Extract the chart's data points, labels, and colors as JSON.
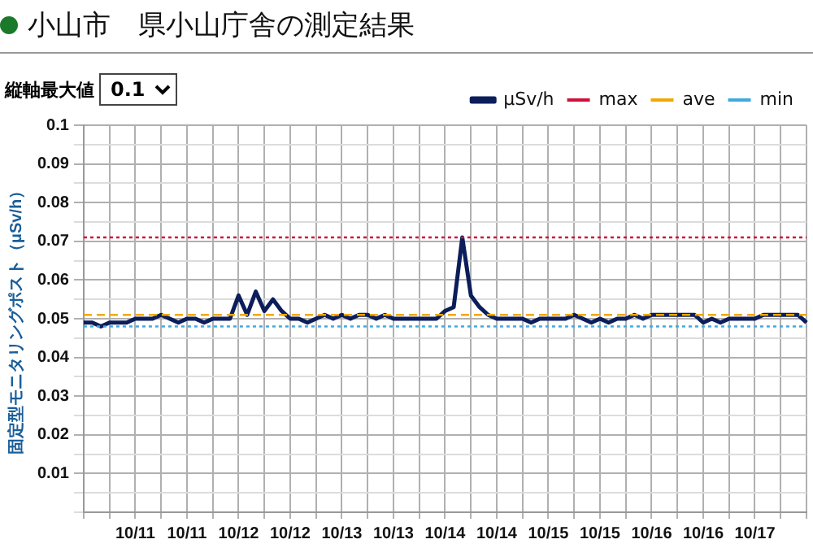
{
  "chart_data": {
    "type": "line",
    "title": "小山市　県小山庁舎の測定結果",
    "ylabel": "固定型モニタリングポスト（μSv/h）",
    "annotations": [
      "縦軸最大値",
      "0.1"
    ],
    "categories": [
      null,
      null,
      null,
      null,
      null,
      null,
      "10/11",
      null,
      null,
      null,
      null,
      null,
      "10/11",
      null,
      null,
      null,
      null,
      null,
      "10/12",
      null,
      null,
      null,
      null,
      null,
      "10/12",
      null,
      null,
      null,
      null,
      null,
      "10/13",
      null,
      null,
      null,
      null,
      null,
      "10/13",
      null,
      null,
      null,
      null,
      null,
      "10/14",
      null,
      null,
      null,
      null,
      null,
      "10/14",
      null,
      null,
      null,
      null,
      null,
      "10/15",
      null,
      null,
      null,
      null,
      null,
      "10/15",
      null,
      null,
      null,
      null,
      null,
      "10/16",
      null,
      null,
      null,
      null,
      null,
      "10/16",
      null,
      null,
      null,
      null,
      null,
      "10/17",
      null,
      null,
      null,
      null,
      null,
      null
    ],
    "series": [
      {
        "name": "μSv/h",
        "color": "#0b1d5a",
        "values": [
          0.049,
          0.049,
          0.048,
          0.049,
          0.049,
          0.049,
          0.05,
          0.05,
          0.05,
          0.051,
          0.05,
          0.049,
          0.05,
          0.05,
          0.049,
          0.05,
          0.05,
          0.05,
          0.056,
          0.051,
          0.057,
          0.052,
          0.055,
          0.052,
          0.05,
          0.05,
          0.049,
          0.05,
          0.051,
          0.05,
          0.051,
          0.05,
          0.051,
          0.051,
          0.05,
          0.051,
          0.05,
          0.05,
          0.05,
          0.05,
          0.05,
          0.05,
          0.052,
          0.053,
          0.071,
          0.056,
          0.053,
          0.051,
          0.05,
          0.05,
          0.05,
          0.05,
          0.049,
          0.05,
          0.05,
          0.05,
          0.05,
          0.051,
          0.05,
          0.049,
          0.05,
          0.049,
          0.05,
          0.05,
          0.051,
          0.05,
          0.051,
          0.051,
          0.051,
          0.051,
          0.051,
          0.051,
          0.049,
          0.05,
          0.049,
          0.05,
          0.05,
          0.05,
          0.05,
          0.051,
          0.051,
          0.051,
          0.051,
          0.051,
          0.049
        ]
      }
    ],
    "ref_lines": [
      {
        "axis": "y",
        "value": 0.071,
        "label": "max",
        "color": "#d0103a",
        "line_style": "dotted"
      },
      {
        "axis": "y",
        "value": 0.051,
        "label": "ave",
        "color": "#f0a800",
        "line_style": "dashed"
      },
      {
        "axis": "y",
        "value": 0.048,
        "label": "min",
        "color": "#40a8e0",
        "line_style": "dotted"
      }
    ],
    "ylim": [
      0,
      0.1
    ],
    "yticks": [
      {
        "value": 0,
        "label": null
      },
      {
        "value": 0.005,
        "label": null
      },
      0.01,
      {
        "value": 0.015,
        "label": null
      },
      0.02,
      {
        "value": 0.025,
        "label": null
      },
      0.03,
      {
        "value": 0.035,
        "label": null
      },
      0.04,
      {
        "value": 0.045,
        "label": null
      },
      0.05,
      {
        "value": 0.055,
        "label": null
      },
      0.06,
      {
        "value": 0.065,
        "label": null
      },
      0.07,
      {
        "value": 0.075,
        "label": null
      },
      0.08,
      {
        "value": 0.085,
        "label": null
      },
      0.09,
      {
        "value": 0.095,
        "label": null
      },
      0.1
    ],
    "grid": true,
    "legend": "top right",
    "marker": "none",
    "line_style": "solid"
  }
}
